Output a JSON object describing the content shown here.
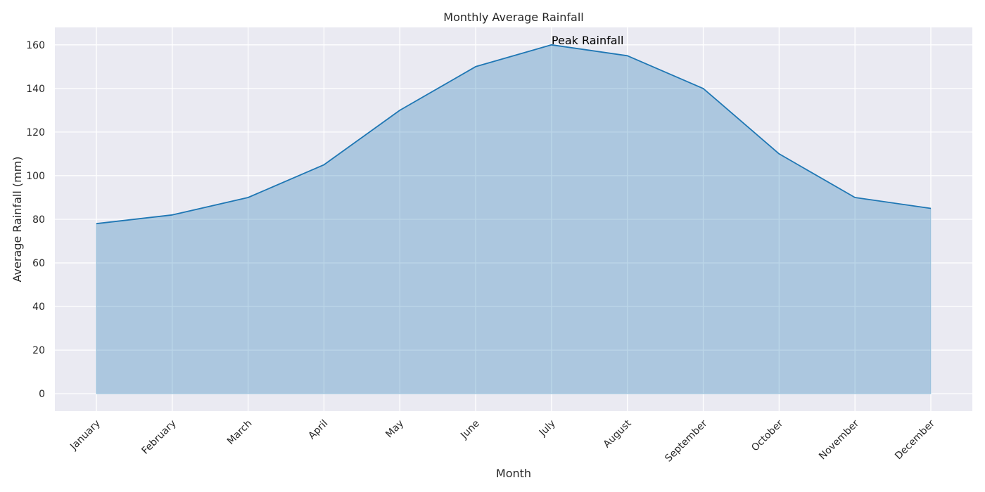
{
  "chart_data": {
    "type": "area",
    "title": "Monthly Average Rainfall",
    "xlabel": "Month",
    "ylabel": "Average Rainfall (mm)",
    "categories": [
      "January",
      "February",
      "March",
      "April",
      "May",
      "June",
      "July",
      "August",
      "September",
      "October",
      "November",
      "December"
    ],
    "series": [
      {
        "values": [
          78,
          82,
          90,
          105,
          130,
          150,
          160,
          155,
          140,
          110,
          90,
          85
        ]
      }
    ],
    "ylim": [
      -8,
      168
    ],
    "yticks": [
      0,
      20,
      40,
      60,
      80,
      100,
      120,
      140,
      160
    ],
    "grid": true,
    "annotation": {
      "text": "Peak Rainfall",
      "category": "July",
      "value": 160
    },
    "colors": {
      "line": "#1f77b4",
      "fill": "#1f77b4",
      "plot_background": "#eaeaf2",
      "grid": "#ffffff",
      "text": "#262626"
    }
  }
}
